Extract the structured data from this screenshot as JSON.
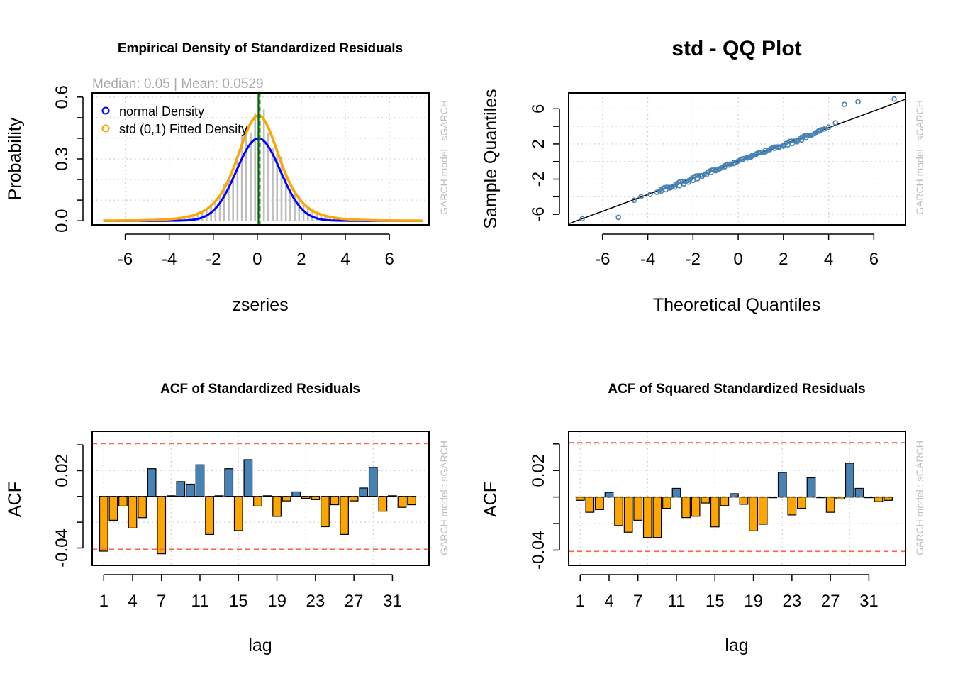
{
  "chart_data": [
    {
      "type": "bar",
      "title": "Empirical Density of Standardized Residuals",
      "subtitle": "Median:  0.05 | Mean:  0.0529",
      "xlabel": "zseries",
      "ylabel": "Probability",
      "credit": "GARCH model :  sGARCH",
      "xlim": [
        -7.5,
        7.8
      ],
      "ylim": [
        -0.02,
        0.62
      ],
      "xticks": [
        -6,
        -4,
        -2,
        0,
        2,
        4,
        6
      ],
      "yticks": [
        0.0,
        0.3,
        0.6
      ],
      "histogram_bin_width": 0.2,
      "histogram_color": "#bebebe",
      "vertical_lines": [
        {
          "x": 0.05,
          "color": "#006400",
          "style": "solid"
        },
        {
          "x": 0.0529,
          "color": "#228b22",
          "style": "dashed"
        }
      ],
      "series": [
        {
          "name": "normal Density",
          "color": "#0000ff",
          "curve": "normal",
          "mean": 0.05,
          "sd": 1.0
        },
        {
          "name": "std (0,1) Fitted Density",
          "color": "#ffa500",
          "curve": "student-t",
          "df": 4.5,
          "peak": 0.51
        }
      ],
      "legend": "top-left",
      "grid": true
    },
    {
      "type": "scatter",
      "title": "std - QQ Plot",
      "xlabel": "Theoretical Quantiles",
      "ylabel": "Sample Quantiles",
      "credit": "GARCH model :  sGARCH",
      "xlim": [
        -7.5,
        7.4
      ],
      "ylim": [
        -7.2,
        7.8
      ],
      "xticks": [
        -6,
        -4,
        -2,
        0,
        2,
        4,
        6
      ],
      "yticks": [
        -6,
        -2,
        2,
        6
      ],
      "reference_line": {
        "intercept": 0.05,
        "slope": 0.95,
        "color": "#000000"
      },
      "point_color": "#4682b4",
      "points": [
        [
          -6.9,
          -6.5
        ],
        [
          -5.3,
          -6.35
        ],
        [
          -4.6,
          -4.4
        ],
        [
          -4.3,
          -4.0
        ],
        [
          -3.9,
          -3.75
        ],
        [
          -3.6,
          -3.5
        ],
        [
          -3.4,
          -3.35
        ],
        [
          -3.2,
          -3.2
        ],
        [
          -3.0,
          -3.0
        ],
        [
          -2.8,
          -2.9
        ],
        [
          -2.6,
          -2.75
        ],
        [
          -2.4,
          -2.55
        ],
        [
          -2.2,
          -2.35
        ],
        [
          -2.0,
          -2.15
        ],
        [
          -1.8,
          -1.95
        ],
        [
          -1.6,
          -1.7
        ],
        [
          -1.4,
          -1.5
        ],
        [
          -1.2,
          -1.25
        ],
        [
          -1.0,
          -1.05
        ],
        [
          -0.8,
          -0.8
        ],
        [
          -0.6,
          -0.6
        ],
        [
          -0.4,
          -0.4
        ],
        [
          -0.2,
          -0.15
        ],
        [
          0.0,
          0.05
        ],
        [
          0.2,
          0.25
        ],
        [
          0.4,
          0.45
        ],
        [
          0.6,
          0.65
        ],
        [
          0.8,
          0.85
        ],
        [
          1.0,
          1.05
        ],
        [
          1.2,
          1.25
        ],
        [
          1.4,
          1.35
        ],
        [
          1.6,
          1.5
        ],
        [
          1.8,
          1.6
        ],
        [
          2.0,
          1.75
        ],
        [
          2.2,
          1.9
        ],
        [
          2.4,
          2.05
        ],
        [
          2.6,
          2.25
        ],
        [
          2.8,
          2.45
        ],
        [
          3.0,
          2.7
        ],
        [
          3.2,
          2.95
        ],
        [
          3.4,
          3.2
        ],
        [
          3.6,
          3.45
        ],
        [
          3.8,
          3.7
        ],
        [
          4.0,
          3.9
        ],
        [
          4.3,
          4.4
        ],
        [
          4.7,
          6.5
        ],
        [
          5.3,
          6.8
        ],
        [
          6.9,
          7.1
        ]
      ],
      "grid": true
    },
    {
      "type": "bar",
      "title": "ACF of Standardized Residuals",
      "xlabel": "lag",
      "ylabel": "ACF",
      "credit": "GARCH model :  sGARCH",
      "xlim": [
        -0.2,
        34.8
      ],
      "ylim": [
        -0.0535,
        0.0505
      ],
      "xticks": [
        1,
        4,
        7,
        11,
        15,
        19,
        23,
        27,
        31
      ],
      "yticks": [
        -0.04,
        0.02
      ],
      "confidence_bounds": [
        -0.041,
        0.041
      ],
      "positive_color": "#4682b4",
      "negative_color": "#ffa500",
      "lags": [
        1,
        2,
        3,
        4,
        5,
        6,
        7,
        8,
        9,
        10,
        11,
        12,
        13,
        14,
        15,
        16,
        17,
        18,
        19,
        20,
        21,
        22,
        23,
        24,
        25,
        26,
        27,
        28,
        29,
        30,
        31,
        32,
        33
      ],
      "values": [
        -0.0425,
        -0.0185,
        -0.0075,
        -0.0245,
        -0.0165,
        0.0215,
        -0.0445,
        0.0005,
        0.0115,
        0.0095,
        0.0245,
        -0.0295,
        0.0005,
        0.0215,
        -0.0265,
        0.0285,
        -0.0075,
        0.0005,
        -0.0155,
        -0.0035,
        0.0035,
        -0.0015,
        -0.0025,
        -0.0235,
        -0.0065,
        -0.0295,
        -0.0035,
        0.0065,
        0.0225,
        -0.0115,
        0.0005,
        -0.0085,
        -0.0065
      ],
      "grid": true
    },
    {
      "type": "bar",
      "title": "ACF of Squared Standardized Residuals",
      "xlabel": "lag",
      "ylabel": "ACF",
      "credit": "GARCH model :  sGARCH",
      "xlim": [
        -0.2,
        34.8
      ],
      "ylim": [
        -0.0515,
        0.0495
      ],
      "xticks": [
        1,
        4,
        7,
        11,
        15,
        19,
        23,
        27,
        31
      ],
      "yticks": [
        -0.04,
        0.02
      ],
      "confidence_bounds": [
        -0.041,
        0.041
      ],
      "positive_color": "#4682b4",
      "negative_color": "#ffa500",
      "lags": [
        1,
        2,
        3,
        4,
        5,
        6,
        7,
        8,
        9,
        10,
        11,
        12,
        13,
        14,
        15,
        16,
        17,
        18,
        19,
        20,
        21,
        22,
        23,
        24,
        25,
        26,
        27,
        28,
        29,
        30,
        31,
        32,
        33
      ],
      "values": [
        -0.0025,
        -0.0115,
        -0.0095,
        0.0035,
        -0.0215,
        -0.0265,
        -0.0175,
        -0.0305,
        -0.0305,
        -0.0085,
        0.0065,
        -0.0155,
        -0.0145,
        -0.0045,
        -0.0225,
        -0.0065,
        0.0025,
        -0.0055,
        -0.0255,
        -0.0205,
        -0.0005,
        0.0185,
        -0.0135,
        -0.0085,
        0.0145,
        -0.0005,
        -0.0115,
        -0.0015,
        0.0255,
        0.0065,
        -0.0005,
        -0.0035,
        -0.0025
      ],
      "grid": true
    }
  ]
}
